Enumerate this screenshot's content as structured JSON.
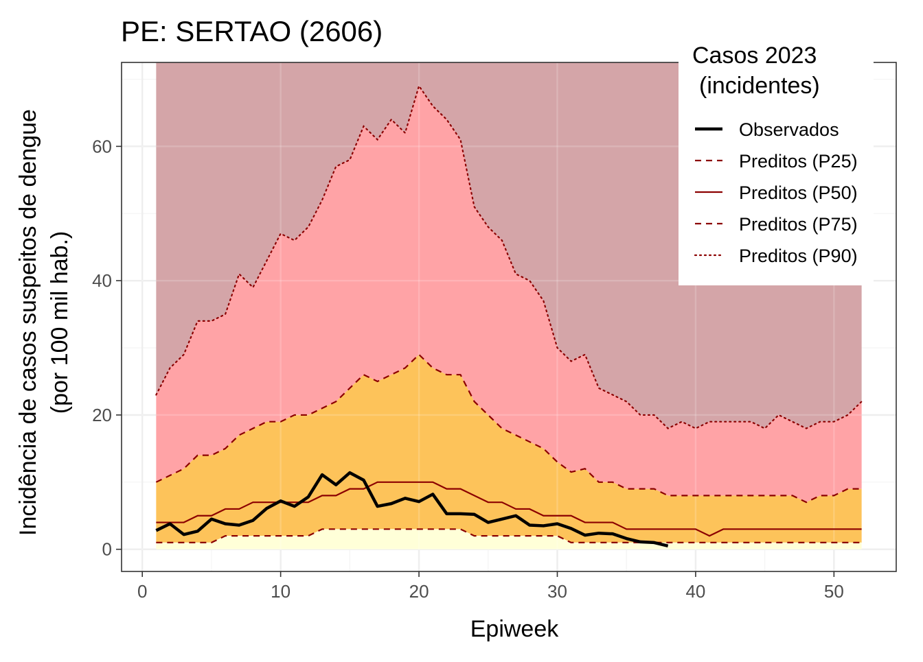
{
  "colors": {
    "band_above_p90": "#d4a5a8",
    "band_p75_p90": "#ffa3a6",
    "band_p25_p75": "#fdc35a",
    "band_below_p25": "#ffffd8",
    "pred_line": "#8b0000",
    "obs_line": "#000000",
    "grid_major": "#ebebeb",
    "grid_minor": "#f4f4f4",
    "panel_border": "#333333"
  },
  "chart_data": {
    "type": "area",
    "title": "PE: SERTAO (2606)",
    "xlabel": "Epiweek",
    "ylabel_line1": "Incidência de casos suspeitos de dengue",
    "ylabel_line2": "(por 100 mil hab.)",
    "xlim": [
      -1.5,
      54.5
    ],
    "ylim": [
      -3.3,
      72.5
    ],
    "x_ticks": [
      0,
      10,
      20,
      30,
      40,
      50
    ],
    "y_ticks": [
      0,
      20,
      40,
      60
    ],
    "x_tick_labels": [
      "0",
      "10",
      "20",
      "30",
      "40",
      "50"
    ],
    "y_tick_labels": [
      "0",
      "20",
      "40",
      "60"
    ],
    "grid": true,
    "legend": {
      "title_line1": "Casos 2023",
      "title_line2": "(incidentes)",
      "placement": "top-right",
      "entries": [
        {
          "label": "Observados",
          "style": "solid-thick"
        },
        {
          "label": "Preditos (P25)",
          "style": "dashed"
        },
        {
          "label": "Preditos (P50)",
          "style": "solid"
        },
        {
          "label": "Preditos (P75)",
          "style": "dashed"
        },
        {
          "label": "Preditos (P90)",
          "style": "dotted"
        }
      ]
    },
    "x": [
      1,
      2,
      3,
      4,
      5,
      6,
      7,
      8,
      9,
      10,
      11,
      12,
      13,
      14,
      15,
      16,
      17,
      18,
      19,
      20,
      21,
      22,
      23,
      24,
      25,
      26,
      27,
      28,
      29,
      30,
      31,
      32,
      33,
      34,
      35,
      36,
      37,
      38,
      39,
      40,
      41,
      42,
      43,
      44,
      45,
      46,
      47,
      48,
      49,
      50,
      51,
      52
    ],
    "series": [
      {
        "name": "Preditos (P25)",
        "values": [
          1,
          1,
          1,
          1,
          1,
          2,
          2,
          2,
          2,
          2,
          2,
          2,
          3,
          3,
          3,
          3,
          3,
          3,
          3,
          3,
          3,
          3,
          3,
          2,
          2,
          2,
          2,
          2,
          2,
          2,
          1,
          1,
          1,
          1,
          1,
          1,
          1,
          1,
          1,
          1,
          1,
          1,
          1,
          1,
          1,
          1,
          1,
          1,
          1,
          1,
          1,
          1
        ]
      },
      {
        "name": "Preditos (P50)",
        "values": [
          4,
          4,
          4,
          5,
          5,
          6,
          6,
          7,
          7,
          7,
          7,
          7,
          8,
          8,
          9,
          9,
          10,
          10,
          10,
          10,
          10,
          9,
          9,
          8,
          7,
          7,
          6,
          6,
          5,
          5,
          5,
          4,
          4,
          4,
          3,
          3,
          3,
          3,
          3,
          3,
          2,
          3,
          3,
          3,
          3,
          3,
          3,
          3,
          3,
          3,
          3,
          3
        ]
      },
      {
        "name": "Preditos (P75)",
        "values": [
          10,
          11,
          12,
          14,
          14,
          15,
          17,
          18,
          19,
          19,
          20,
          20,
          21,
          22,
          24,
          26,
          25,
          26,
          27,
          29,
          27,
          26,
          26,
          22,
          20,
          18,
          17,
          16,
          15,
          13,
          11.5,
          12,
          10,
          10,
          9,
          9,
          9,
          8,
          8,
          8,
          8,
          8,
          8,
          8,
          8,
          8,
          8,
          7,
          8,
          8,
          9,
          9
        ]
      },
      {
        "name": "Preditos (P90)",
        "values": [
          23,
          27,
          29,
          34,
          34,
          35,
          41,
          39,
          43,
          47,
          46,
          48,
          52,
          57,
          58,
          63,
          61,
          64,
          62,
          69,
          66,
          64,
          61,
          51,
          48,
          46,
          41,
          40,
          37,
          30,
          28,
          29,
          24,
          23,
          22,
          20,
          20,
          18,
          19,
          18,
          19,
          19,
          19,
          19,
          18,
          20,
          19,
          18,
          19,
          19,
          20,
          22
        ]
      },
      {
        "name": "Observados",
        "x": [
          1,
          2,
          3,
          4,
          5,
          6,
          7,
          8,
          9,
          10,
          11,
          12,
          13,
          14,
          15,
          16,
          17,
          18,
          19,
          20,
          21,
          22,
          23,
          24,
          25,
          26,
          27,
          28,
          29,
          30,
          31,
          32,
          33,
          34,
          35,
          36,
          37,
          38
        ],
        "values": [
          2.8,
          3.8,
          2.2,
          2.7,
          4.5,
          3.8,
          3.6,
          4.3,
          6.1,
          7.2,
          6.4,
          7.8,
          11.1,
          9.6,
          11.4,
          10.3,
          6.4,
          6.8,
          7.6,
          7.1,
          8.2,
          5.3,
          5.3,
          5.2,
          4.0,
          4.5,
          5.0,
          3.6,
          3.5,
          3.8,
          3.1,
          2.1,
          2.4,
          2.3,
          1.6,
          1.1,
          1.0,
          0.5
        ]
      }
    ]
  }
}
